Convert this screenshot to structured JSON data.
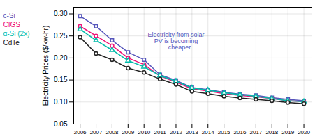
{
  "chart_data": {
    "type": "line",
    "x": [
      2006,
      2007,
      2008,
      2009,
      2010,
      2011,
      2012,
      2013,
      2014,
      2015,
      2016,
      2017,
      2018,
      2019,
      2020
    ],
    "series": [
      {
        "name": "c-Si",
        "color": "#5555bb",
        "marker": "square",
        "values": [
          0.295,
          0.272,
          0.24,
          0.213,
          0.196,
          0.162,
          0.149,
          0.133,
          0.128,
          0.122,
          0.118,
          0.115,
          0.11,
          0.106,
          0.103
        ]
      },
      {
        "name": "CIGS",
        "color": "#ee1177",
        "marker": "circle",
        "values": [
          0.272,
          0.25,
          0.228,
          0.2,
          0.185,
          0.159,
          0.145,
          0.13,
          0.125,
          0.119,
          0.115,
          0.112,
          0.108,
          0.103,
          0.101
        ]
      },
      {
        "name": "α-Si (2x)",
        "color": "#00bbaa",
        "marker": "triangle",
        "values": [
          0.265,
          0.24,
          0.218,
          0.194,
          0.18,
          0.16,
          0.147,
          0.132,
          0.127,
          0.121,
          0.117,
          0.113,
          0.108,
          0.103,
          0.101
        ]
      },
      {
        "name": "CdTe",
        "color": "#222222",
        "marker": "circle",
        "values": [
          0.247,
          0.21,
          0.196,
          0.177,
          0.167,
          0.152,
          0.14,
          0.124,
          0.119,
          0.113,
          0.109,
          0.106,
          0.103,
          0.099,
          0.096
        ]
      }
    ],
    "ylabel": "Electricity Prices ($/kw-hr)",
    "annotations": [
      {
        "text": "Electricity from solar\nPV is becoming\n    cheaper",
        "x": 2012.0,
        "y": 0.258,
        "color": "#5555bb"
      }
    ],
    "xlim": [
      2005.6,
      2020.5
    ],
    "xticks": [
      2006,
      2007,
      2008,
      2009,
      2010,
      2011,
      2012,
      2013,
      2014,
      2015,
      2016,
      2017,
      2018,
      2019,
      2020
    ],
    "ylim": [
      0.05,
      0.315
    ],
    "yticks": [
      0.05,
      {
        "value": 0.1,
        "label": "0.10"
      },
      0.15,
      {
        "value": 0.2,
        "label": "0.20"
      },
      0.25,
      {
        "value": 0.3,
        "label": "0.30"
      }
    ],
    "grid": true,
    "legend": "left"
  }
}
